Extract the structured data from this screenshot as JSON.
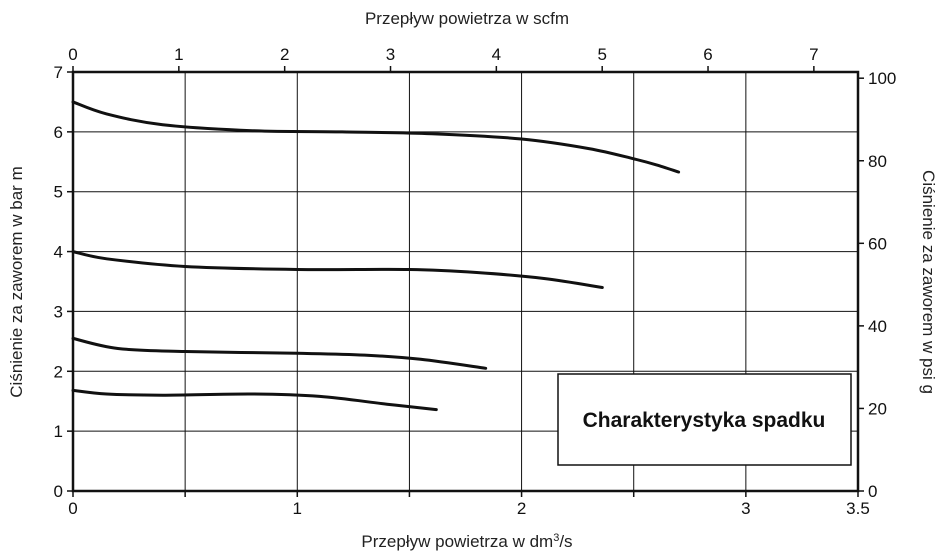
{
  "chart_data": {
    "type": "line",
    "title": "Charakterystyka spadku",
    "x_bottom": {
      "label_main": "Przepływ powietrza w dm",
      "label_sup": "3",
      "label_tail": "/s",
      "range": [
        0,
        3.5
      ],
      "ticks": [
        0,
        0.5,
        1,
        1.5,
        2,
        2.5,
        3,
        3.5
      ],
      "tick_labels": [
        "0",
        "",
        "1",
        "",
        "2",
        "",
        "3",
        "3.5"
      ]
    },
    "x_top": {
      "label": "Przepływ powietrza w scfm",
      "range": [
        0,
        7.417
      ],
      "ticks": [
        0,
        1,
        2,
        3,
        4,
        5,
        6,
        7
      ],
      "tick_labels": [
        "0",
        "1",
        "2",
        "3",
        "4",
        "5",
        "6",
        "7"
      ]
    },
    "y_left": {
      "label": "Ciśnienie za zaworem w bar m",
      "range": [
        0,
        7
      ],
      "ticks": [
        0,
        1,
        2,
        3,
        4,
        5,
        6,
        7
      ],
      "tick_labels": [
        "0",
        "1",
        "2",
        "3",
        "4",
        "5",
        "6",
        "7"
      ]
    },
    "y_right": {
      "label": "Ciśnienie za zaworem w psi g",
      "range": [
        0,
        101.5
      ],
      "ticks": [
        0,
        20,
        40,
        60,
        80,
        100
      ],
      "tick_labels": [
        "0",
        "20",
        "40",
        "60",
        "80",
        "100"
      ]
    },
    "grid": true,
    "series": [
      {
        "points": [
          [
            0,
            6.5
          ],
          [
            0.15,
            6.3
          ],
          [
            0.4,
            6.12
          ],
          [
            0.8,
            6.02
          ],
          [
            1.2,
            6.0
          ],
          [
            1.6,
            5.97
          ],
          [
            2.0,
            5.88
          ],
          [
            2.3,
            5.72
          ],
          [
            2.5,
            5.55
          ],
          [
            2.6,
            5.45
          ],
          [
            2.7,
            5.33
          ]
        ]
      },
      {
        "points": [
          [
            0,
            4.0
          ],
          [
            0.15,
            3.88
          ],
          [
            0.5,
            3.75
          ],
          [
            1.0,
            3.7
          ],
          [
            1.5,
            3.7
          ],
          [
            1.8,
            3.65
          ],
          [
            2.1,
            3.55
          ],
          [
            2.36,
            3.4
          ]
        ]
      },
      {
        "points": [
          [
            0,
            2.55
          ],
          [
            0.2,
            2.38
          ],
          [
            0.5,
            2.33
          ],
          [
            1.0,
            2.3
          ],
          [
            1.3,
            2.27
          ],
          [
            1.55,
            2.2
          ],
          [
            1.84,
            2.05
          ]
        ]
      },
      {
        "points": [
          [
            0,
            1.68
          ],
          [
            0.15,
            1.62
          ],
          [
            0.4,
            1.6
          ],
          [
            0.8,
            1.62
          ],
          [
            1.1,
            1.58
          ],
          [
            1.4,
            1.45
          ],
          [
            1.62,
            1.36
          ]
        ]
      }
    ]
  }
}
